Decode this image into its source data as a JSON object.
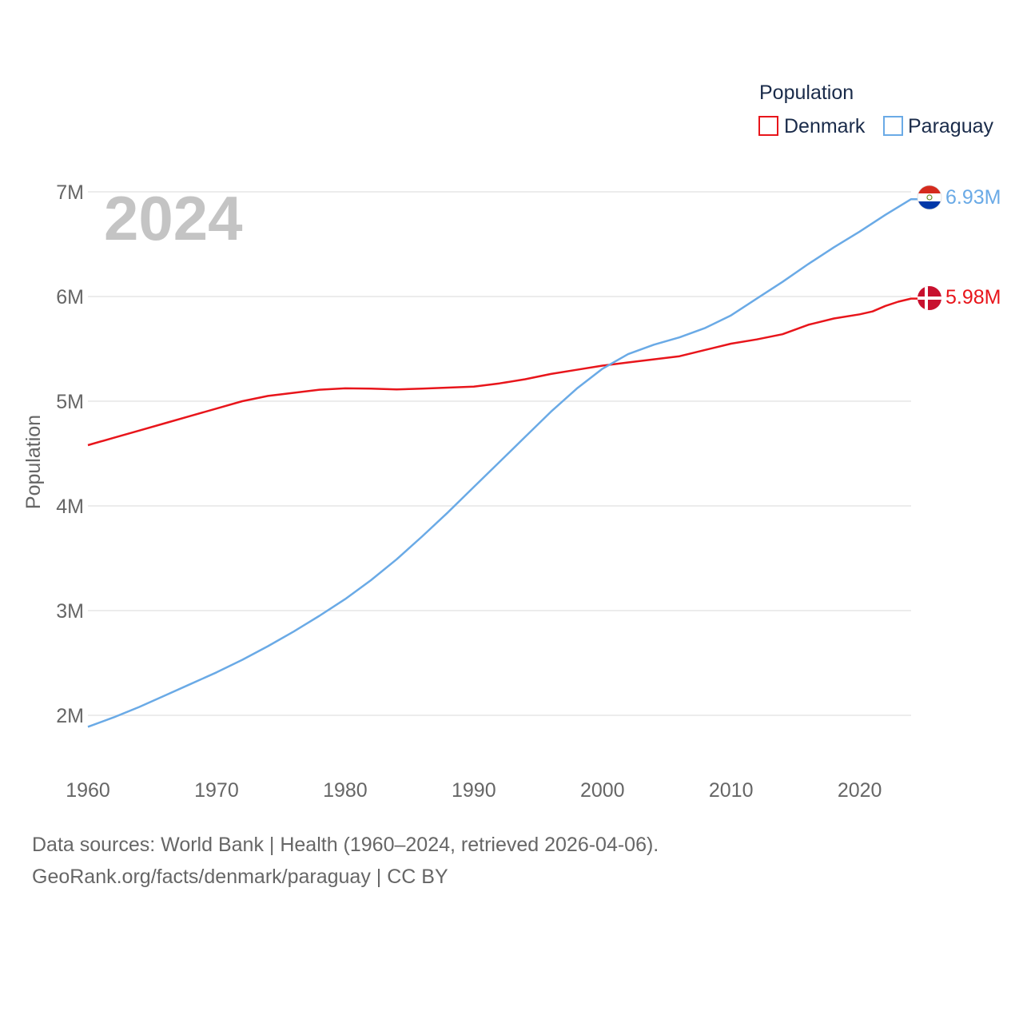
{
  "chart_data": {
    "type": "line",
    "year_label": "2024",
    "ylabel": "Population",
    "xlabel": "",
    "ylim": [
      1500000,
      7000000
    ],
    "xlim": [
      1960,
      2024
    ],
    "y_ticks": [
      {
        "value": 2000000,
        "label": "2M"
      },
      {
        "value": 3000000,
        "label": "3M"
      },
      {
        "value": 4000000,
        "label": "4M"
      },
      {
        "value": 5000000,
        "label": "5M"
      },
      {
        "value": 6000000,
        "label": "6M"
      },
      {
        "value": 7000000,
        "label": "7M"
      }
    ],
    "x_ticks": [
      {
        "value": 1960,
        "label": "1960"
      },
      {
        "value": 1970,
        "label": "1970"
      },
      {
        "value": 1980,
        "label": "1980"
      },
      {
        "value": 1990,
        "label": "1990"
      },
      {
        "value": 2000,
        "label": "2000"
      },
      {
        "value": 2010,
        "label": "2010"
      },
      {
        "value": 2020,
        "label": "2020"
      }
    ],
    "legend": {
      "title": "Population",
      "position": "top-right"
    },
    "series": [
      {
        "name": "Denmark",
        "color": "#e8151b",
        "end_label": "5.98M",
        "flag": "denmark-flag",
        "points": [
          [
            1960,
            4580000
          ],
          [
            1962,
            4650000
          ],
          [
            1964,
            4720000
          ],
          [
            1966,
            4790000
          ],
          [
            1968,
            4860000
          ],
          [
            1970,
            4930000
          ],
          [
            1972,
            5000000
          ],
          [
            1974,
            5050000
          ],
          [
            1976,
            5080000
          ],
          [
            1978,
            5110000
          ],
          [
            1980,
            5123000
          ],
          [
            1982,
            5120000
          ],
          [
            1984,
            5112000
          ],
          [
            1986,
            5120000
          ],
          [
            1988,
            5130000
          ],
          [
            1990,
            5140000
          ],
          [
            1992,
            5170000
          ],
          [
            1994,
            5210000
          ],
          [
            1996,
            5260000
          ],
          [
            1998,
            5300000
          ],
          [
            2000,
            5340000
          ],
          [
            2002,
            5370000
          ],
          [
            2004,
            5400000
          ],
          [
            2006,
            5430000
          ],
          [
            2008,
            5490000
          ],
          [
            2010,
            5550000
          ],
          [
            2012,
            5590000
          ],
          [
            2014,
            5640000
          ],
          [
            2016,
            5730000
          ],
          [
            2018,
            5790000
          ],
          [
            2020,
            5830000
          ],
          [
            2021,
            5857000
          ],
          [
            2022,
            5910000
          ],
          [
            2023,
            5950000
          ],
          [
            2024,
            5980000
          ]
        ]
      },
      {
        "name": "Paraguay",
        "color": "#6aaae6",
        "end_label": "6.93M",
        "flag": "paraguay-flag",
        "points": [
          [
            1960,
            1890000
          ],
          [
            1962,
            1980000
          ],
          [
            1964,
            2080000
          ],
          [
            1966,
            2190000
          ],
          [
            1968,
            2300000
          ],
          [
            1970,
            2410000
          ],
          [
            1972,
            2530000
          ],
          [
            1974,
            2660000
          ],
          [
            1976,
            2800000
          ],
          [
            1978,
            2950000
          ],
          [
            1980,
            3110000
          ],
          [
            1982,
            3290000
          ],
          [
            1984,
            3490000
          ],
          [
            1986,
            3710000
          ],
          [
            1988,
            3940000
          ],
          [
            1990,
            4180000
          ],
          [
            1992,
            4420000
          ],
          [
            1994,
            4660000
          ],
          [
            1996,
            4900000
          ],
          [
            1998,
            5120000
          ],
          [
            2000,
            5310000
          ],
          [
            2002,
            5450000
          ],
          [
            2004,
            5540000
          ],
          [
            2006,
            5610000
          ],
          [
            2008,
            5700000
          ],
          [
            2010,
            5820000
          ],
          [
            2012,
            5980000
          ],
          [
            2014,
            6140000
          ],
          [
            2016,
            6310000
          ],
          [
            2018,
            6470000
          ],
          [
            2020,
            6620000
          ],
          [
            2022,
            6780000
          ],
          [
            2024,
            6930000
          ]
        ]
      }
    ]
  },
  "footer": {
    "sources": "Data sources: World Bank | Health (1960–2024, retrieved 2026-04-06).",
    "credit": "GeoRank.org/facts/denmark/paraguay | CC BY"
  },
  "colors": {
    "grid": "#e6e6e6",
    "tick_text": "#666666",
    "legend_title": "#1a2b4a",
    "year_label": "#c4c4c4"
  }
}
